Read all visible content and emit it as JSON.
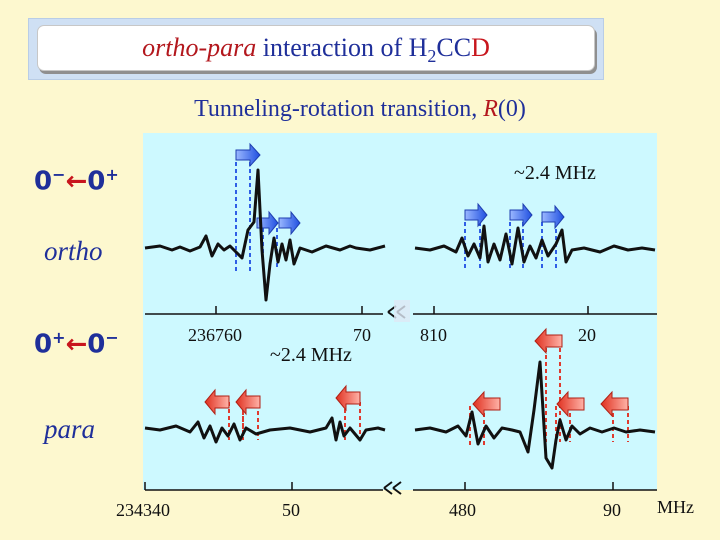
{
  "slide": {
    "title": {
      "part1": "ortho-para",
      "part2": " interaction of H",
      "sub": "2",
      "part3": "CC",
      "part4": "D"
    },
    "subtitle": {
      "prefix": "Tunneling-rotation transition, ",
      "label": "R",
      "suffix": "(0)"
    }
  },
  "ortho": {
    "label": "ortho",
    "state_lo": "0",
    "state_lo_sup": "−",
    "arrow": "←",
    "state_hi": "0",
    "state_hi_sup": "+",
    "splitting": "~2.4 MHz",
    "ticks": {
      "left": "236760",
      "mid": "70",
      "right_a": "810",
      "right_b": "20"
    }
  },
  "para": {
    "label": "para",
    "state_lo": "0",
    "state_lo_sup": "+",
    "arrow": "←",
    "state_hi": "0",
    "state_hi_sup": "−",
    "splitting": "~2.4 MHz",
    "ticks": {
      "left": "234340",
      "mid": "50",
      "right_a": "480",
      "right_b": "90"
    }
  },
  "unit": "MHz",
  "colors": {
    "ortho_marker": "#2f5fe6",
    "para_marker": "#e8473a",
    "trace": "#111111",
    "panel": "#cdf9ff"
  },
  "chart_data": {
    "type": "line",
    "title": "Tunneling-rotation transition, R(0)",
    "xlabel": "MHz",
    "ylabel": "",
    "panels": [
      {
        "name": "ortho",
        "segments": [
          {
            "range": [
              236760,
              236770
            ],
            "tick_labels": [
              "236760",
              "70"
            ]
          },
          {
            "range": [
              236810,
              236820
            ],
            "tick_labels": [
              "810",
              "20"
            ]
          }
        ],
        "splitting_MHz": 2.4
      },
      {
        "name": "para",
        "segments": [
          {
            "range": [
              234340,
              234350
            ],
            "tick_labels": [
              "234340",
              "50"
            ]
          },
          {
            "range": [
              234480,
              234490
            ],
            "tick_labels": [
              "480",
              "90"
            ]
          }
        ],
        "splitting_MHz": 2.4
      }
    ]
  }
}
